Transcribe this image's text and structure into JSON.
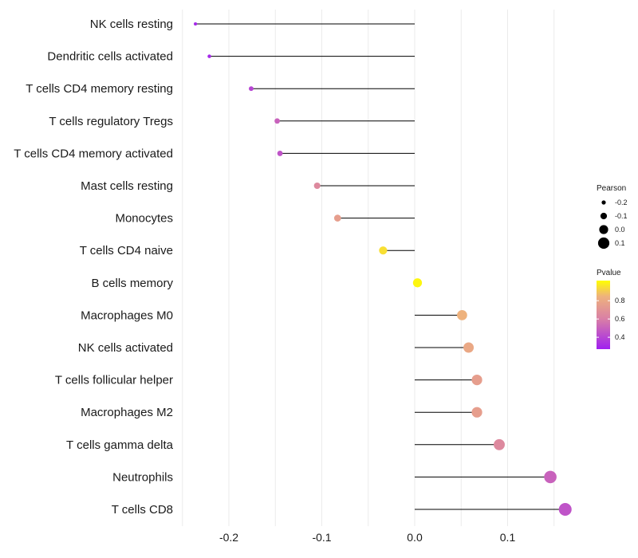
{
  "chart_data": {
    "type": "lollipop",
    "title": "",
    "xlabel": "",
    "ylabel": "",
    "xlim": [
      -0.25,
      0.17
    ],
    "x_ticks": [
      -0.2,
      -0.1,
      0.0,
      0.1
    ],
    "x_tick_labels": [
      "-0.2",
      "-0.1",
      "0.0",
      "0.1"
    ],
    "grid": true,
    "categories": [
      "NK cells resting",
      "Dendritic cells activated",
      "T cells CD4 memory resting",
      "T cells regulatory  Tregs ",
      "T cells CD4 memory activated",
      "Mast cells resting",
      "Monocytes",
      "T cells CD4 naive",
      "B cells memory",
      "Macrophages M0",
      "NK cells activated",
      "T cells follicular helper",
      "Macrophages M2",
      "T cells gamma delta",
      "Neutrophils",
      "T cells CD8"
    ],
    "values": [
      -0.236,
      -0.221,
      -0.176,
      -0.148,
      -0.145,
      -0.105,
      -0.083,
      -0.034,
      0.003,
      0.051,
      0.058,
      0.067,
      0.067,
      0.091,
      0.146,
      0.162
    ],
    "pvalues": [
      0.3,
      0.3,
      0.4,
      0.5,
      0.45,
      0.65,
      0.75,
      0.95,
      1.0,
      0.85,
      0.8,
      0.75,
      0.75,
      0.65,
      0.5,
      0.45
    ],
    "size_legend": {
      "title": "Pearson",
      "labels": [
        "-0.2",
        "-0.1",
        "0.0",
        "0.1"
      ],
      "values": [
        -0.2,
        -0.1,
        0.0,
        0.1
      ]
    },
    "color_legend": {
      "title": "Pvalue",
      "labels": [
        "0.8",
        "0.6",
        "0.4"
      ],
      "values": [
        0.8,
        0.6,
        0.4
      ],
      "range": [
        0.27,
        1.02
      ],
      "colors": {
        "low": "#a020f0",
        "mid": "#d97fa6",
        "mid2": "#eeb27d",
        "high": "#ffff00"
      }
    },
    "legend_position": "right"
  }
}
